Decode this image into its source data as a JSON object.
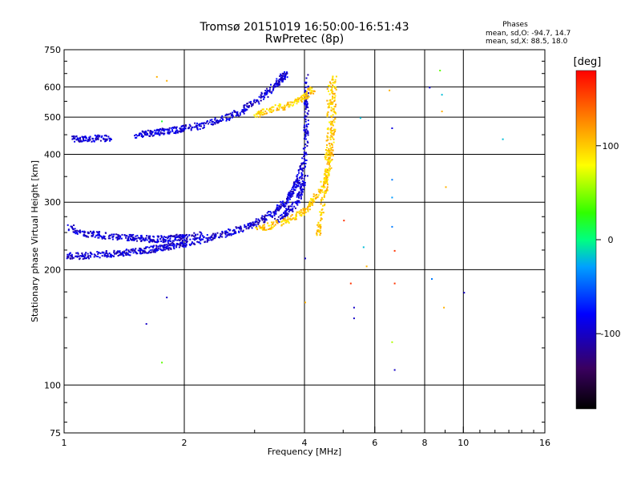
{
  "chart_data": {
    "type": "scatter",
    "title": "Tromsø 20151019 16:50:00-16:51:43",
    "subtitle": "RwPretec (8p)",
    "xlabel": "Frequency [MHz]",
    "ylabel": "Stationary phase Virtual Height [km]",
    "xscale": "log",
    "yscale": "log",
    "xlim": [
      1,
      16
    ],
    "ylim": [
      75,
      750
    ],
    "x_ticks": [
      1,
      2,
      4,
      6,
      8,
      10,
      16
    ],
    "y_ticks": [
      75,
      100,
      200,
      300,
      400,
      500,
      600,
      750
    ],
    "grid": true,
    "color_variable": "Phase",
    "colorbar": {
      "label": "[deg]",
      "range": [
        -180,
        180
      ],
      "ticks": [
        100,
        0,
        -100
      ]
    },
    "stats_title": "Phases",
    "stats_lines": [
      "mean, sd,O: -94.7, 14.7",
      "mean, sd,X: 88.5, 18.0"
    ],
    "series": [
      {
        "mode": "O",
        "phase": -95,
        "x": [
          1.02,
          1.1,
          1.2,
          1.3,
          1.4,
          1.5,
          1.6,
          1.7,
          1.8,
          1.9,
          2.0,
          2.2,
          2.4,
          2.6,
          2.8,
          3.0,
          3.2,
          3.4,
          3.6,
          3.7,
          3.8,
          3.9,
          4.0,
          4.02,
          4.03,
          4.05
        ],
        "y": [
          218,
          218,
          220,
          221,
          222,
          224,
          226,
          228,
          230,
          233,
          235,
          240,
          246,
          252,
          258,
          265,
          275,
          288,
          305,
          318,
          335,
          360,
          400,
          470,
          550,
          640
        ]
      },
      {
        "mode": "O",
        "phase": -95,
        "x": [
          1.02,
          1.1,
          1.2,
          1.3,
          1.4,
          1.5,
          1.6,
          1.7,
          1.8,
          1.9,
          2.0,
          2.2
        ],
        "y": [
          260,
          250,
          248,
          245,
          244,
          243,
          242,
          241,
          242,
          243,
          244,
          248
        ]
      },
      {
        "mode": "O",
        "phase": -95,
        "x": [
          1.5,
          1.6,
          1.7,
          1.8,
          1.9,
          2.0,
          2.2,
          2.4,
          2.6,
          2.8,
          3.0,
          3.2,
          3.4,
          3.5,
          3.6
        ],
        "y": [
          450,
          455,
          458,
          462,
          465,
          470,
          478,
          490,
          505,
          525,
          550,
          580,
          615,
          640,
          650
        ]
      },
      {
        "mode": "O",
        "phase": -95,
        "x": [
          1.05,
          1.1,
          1.2,
          1.3
        ],
        "y": [
          440,
          441,
          442,
          443
        ]
      },
      {
        "mode": "O",
        "phase": -95,
        "x": [
          3.4,
          3.6,
          3.8,
          3.9,
          4.0
        ],
        "y": [
          270,
          283,
          300,
          320,
          350
        ]
      },
      {
        "mode": "X",
        "phase": 100,
        "x": [
          3.0,
          3.3,
          3.6,
          3.9,
          4.1,
          4.3,
          4.5,
          4.6,
          4.65,
          4.7,
          4.72,
          4.73
        ],
        "y": [
          255,
          262,
          270,
          282,
          295,
          315,
          345,
          380,
          420,
          480,
          560,
          630
        ]
      },
      {
        "mode": "X",
        "phase": 100,
        "x": [
          3.0,
          3.2,
          3.5,
          3.8,
          4.0,
          4.2
        ],
        "y": [
          510,
          520,
          535,
          550,
          570,
          600
        ]
      },
      {
        "mode": "X",
        "phase": 100,
        "x": [
          4.3,
          4.4,
          4.5,
          4.55,
          4.6,
          4.6
        ],
        "y": [
          250,
          280,
          330,
          400,
          500,
          620
        ]
      }
    ],
    "scatter_points": [
      {
        "x": 1.6,
        "y": 145,
        "phase": -100
      },
      {
        "x": 1.8,
        "y": 170,
        "phase": -100
      },
      {
        "x": 1.75,
        "y": 115,
        "phase": 40
      },
      {
        "x": 1.7,
        "y": 640,
        "phase": 110
      },
      {
        "x": 1.8,
        "y": 625,
        "phase": 110
      },
      {
        "x": 1.75,
        "y": 490,
        "phase": 20
      },
      {
        "x": 6.5,
        "y": 590,
        "phase": 110
      },
      {
        "x": 6.6,
        "y": 470,
        "phase": -90
      },
      {
        "x": 6.6,
        "y": 345,
        "phase": -40
      },
      {
        "x": 6.6,
        "y": 310,
        "phase": -30
      },
      {
        "x": 6.6,
        "y": 260,
        "phase": -40
      },
      {
        "x": 6.7,
        "y": 225,
        "phase": 160
      },
      {
        "x": 6.7,
        "y": 185,
        "phase": 160
      },
      {
        "x": 6.6,
        "y": 130,
        "phase": 60
      },
      {
        "x": 6.7,
        "y": 110,
        "phase": -100
      },
      {
        "x": 8.7,
        "y": 665,
        "phase": 40
      },
      {
        "x": 8.8,
        "y": 575,
        "phase": -20
      },
      {
        "x": 8.8,
        "y": 520,
        "phase": 110
      },
      {
        "x": 8.2,
        "y": 600,
        "phase": -90
      },
      {
        "x": 9.0,
        "y": 330,
        "phase": 110
      },
      {
        "x": 8.3,
        "y": 190,
        "phase": -40
      },
      {
        "x": 8.9,
        "y": 160,
        "phase": 110
      },
      {
        "x": 10.0,
        "y": 175,
        "phase": -100
      },
      {
        "x": 12.5,
        "y": 440,
        "phase": -20
      },
      {
        "x": 5.5,
        "y": 500,
        "phase": -20
      },
      {
        "x": 5.7,
        "y": 205,
        "phase": 110
      },
      {
        "x": 5.2,
        "y": 185,
        "phase": 160
      },
      {
        "x": 5.3,
        "y": 160,
        "phase": -100
      },
      {
        "x": 5.3,
        "y": 150,
        "phase": -100
      },
      {
        "x": 4.0,
        "y": 215,
        "phase": -100
      },
      {
        "x": 4.0,
        "y": 165,
        "phase": 110
      },
      {
        "x": 5.6,
        "y": 230,
        "phase": -20
      },
      {
        "x": 5.0,
        "y": 270,
        "phase": 160
      }
    ]
  }
}
